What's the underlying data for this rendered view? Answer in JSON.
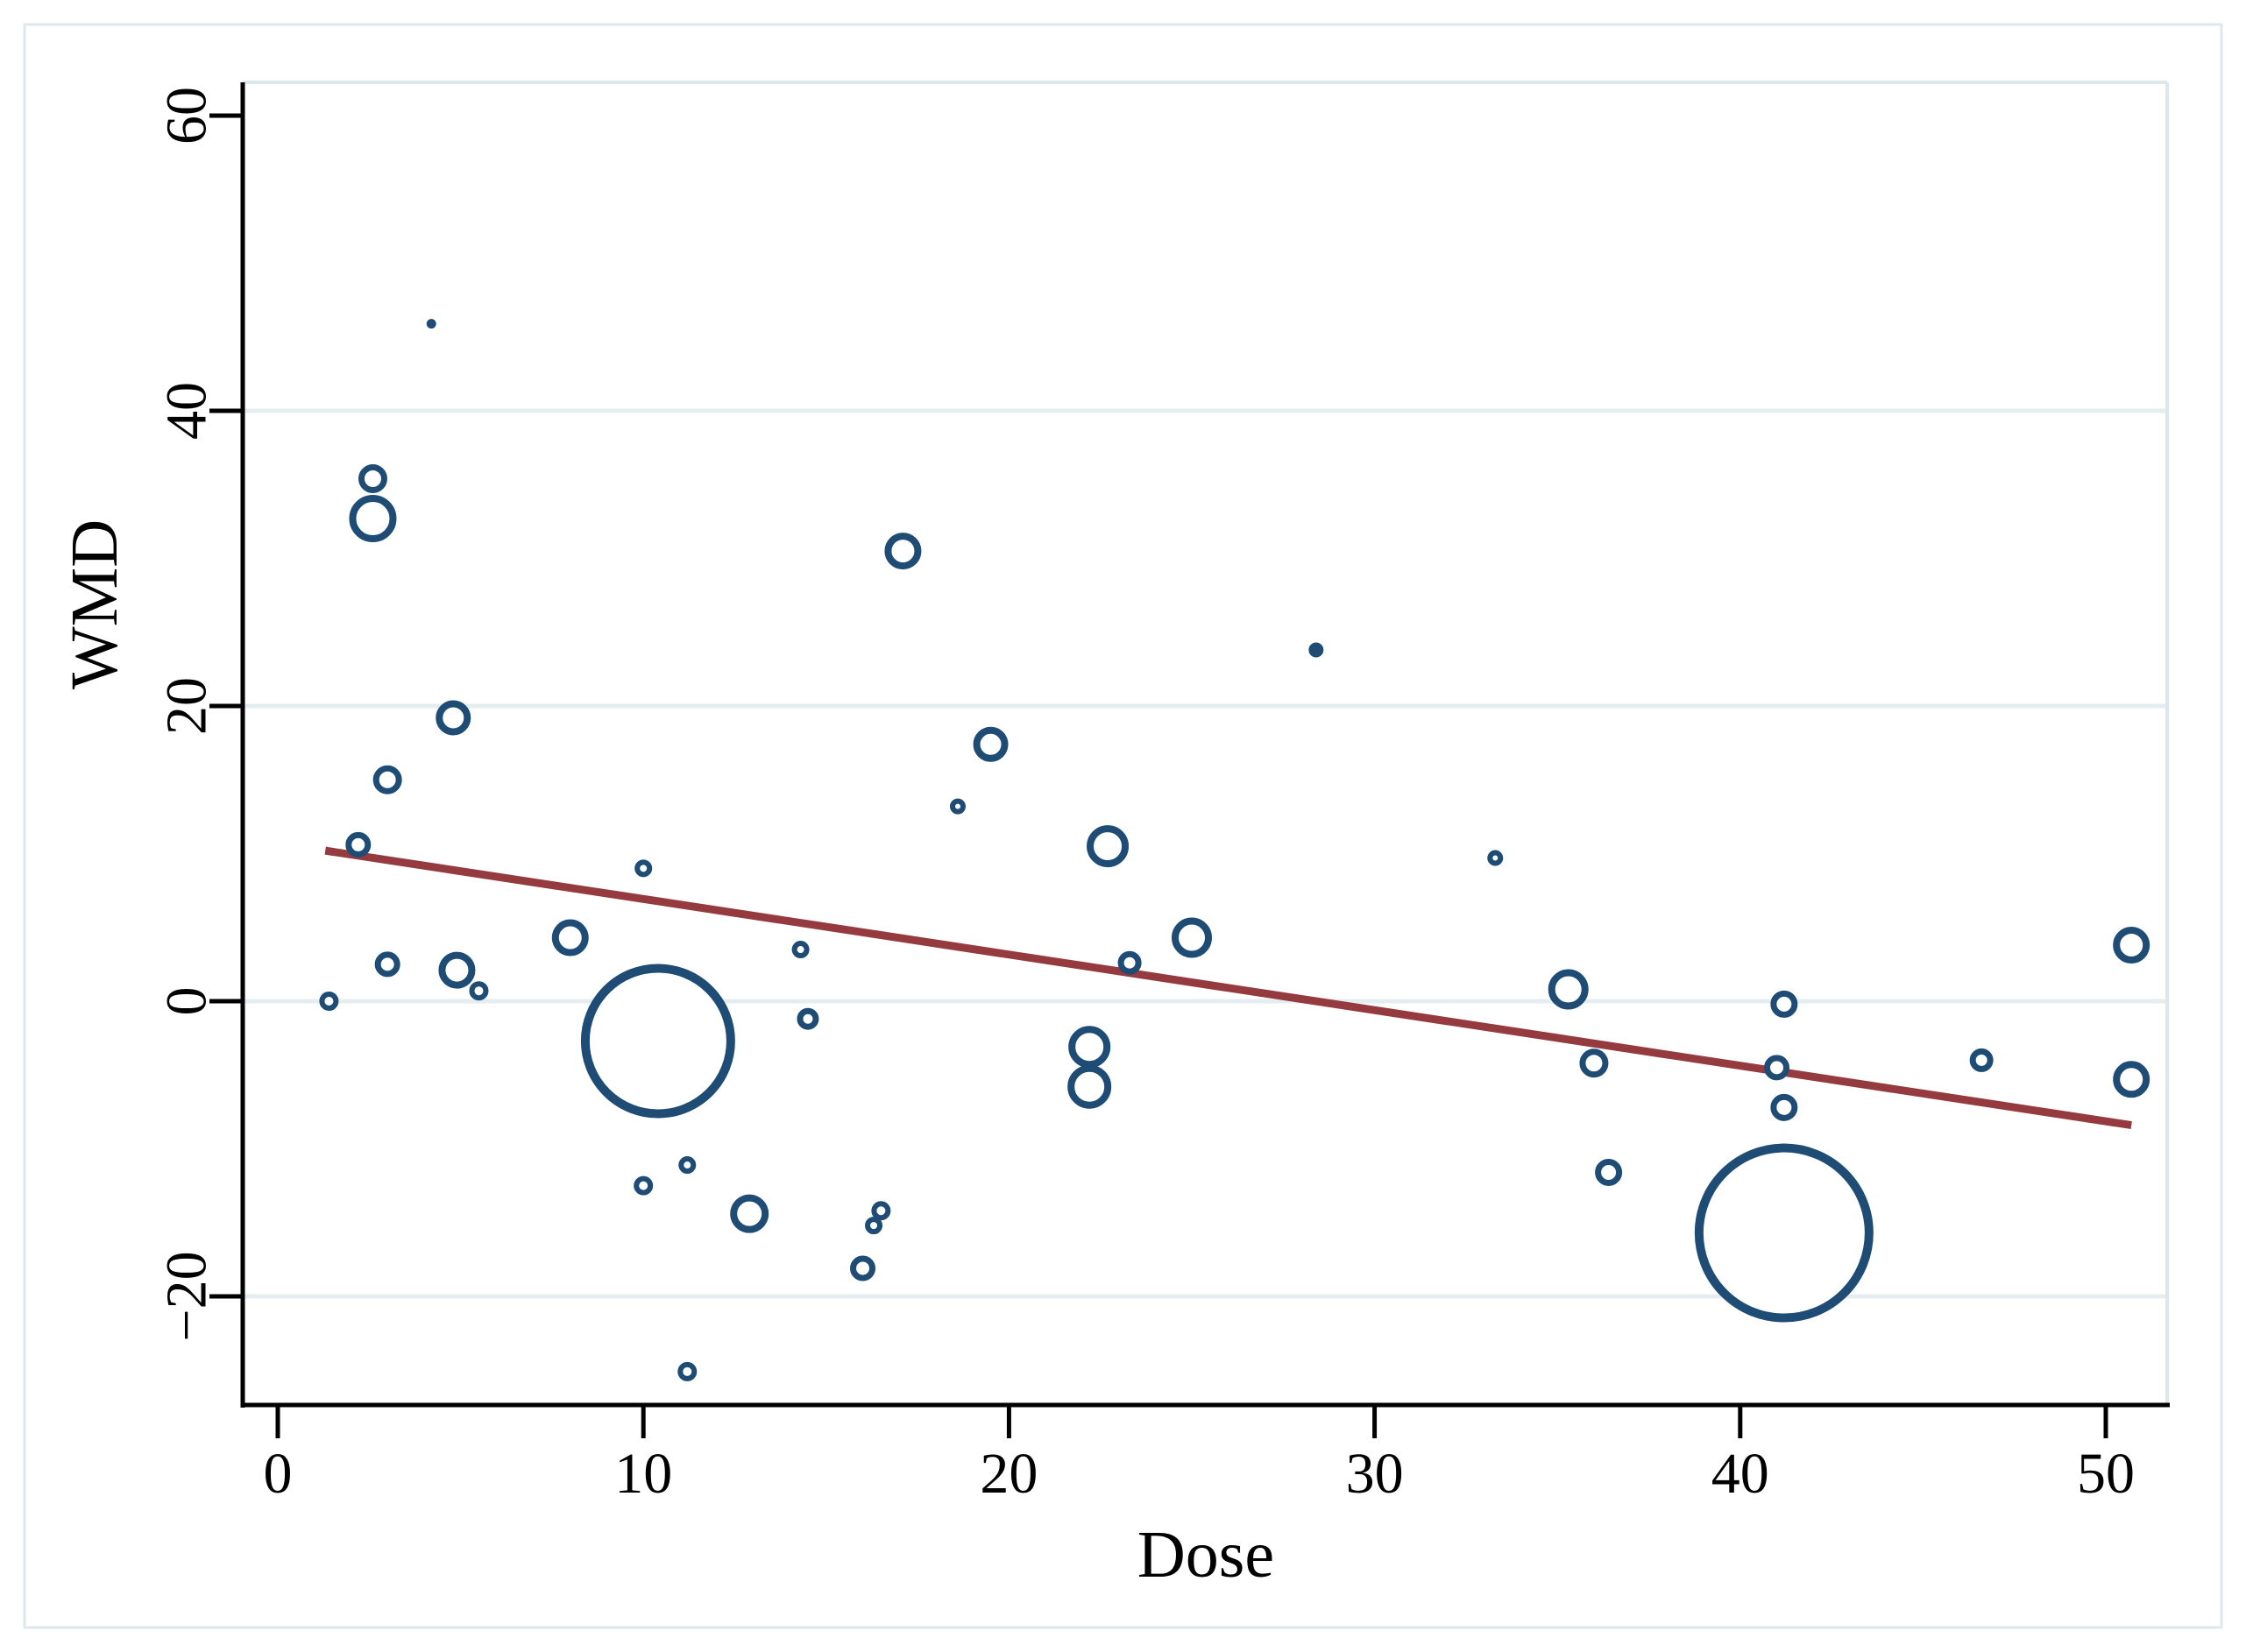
{
  "chart_data": {
    "type": "scatter",
    "subtype": "bubble-meta-regression",
    "title": "",
    "xlabel": "Dose",
    "ylabel": "WMD",
    "xlim": [
      -1,
      51.7
    ],
    "ylim": [
      -27.4,
      62.3
    ],
    "x_ticks": [
      0,
      10,
      20,
      30,
      40,
      50
    ],
    "x_tick_labels": [
      "0",
      "10",
      "20",
      "30",
      "40",
      "50"
    ],
    "y_ticks": [
      60,
      40,
      20,
      0,
      -20
    ],
    "y_tick_labels": [
      "60",
      "40",
      "20",
      "0",
      "−20"
    ],
    "grid_y_values": [
      40,
      20,
      0,
      -20
    ],
    "grid_on": true,
    "legend": "none",
    "points": [
      {
        "dose": 4.2,
        "wmd": 45.9,
        "r": 5,
        "filled": true
      },
      {
        "dose": 2.6,
        "wmd": 35.4,
        "r": 13
      },
      {
        "dose": 2.6,
        "wmd": 32.7,
        "r": 23
      },
      {
        "dose": 4.8,
        "wmd": 19.2,
        "r": 16
      },
      {
        "dose": 3.0,
        "wmd": 15.0,
        "r": 13
      },
      {
        "dose": 2.2,
        "wmd": 10.6,
        "r": 11
      },
      {
        "dose": 10.0,
        "wmd": 9.0,
        "r": 7
      },
      {
        "dose": 8.0,
        "wmd": 4.3,
        "r": 17
      },
      {
        "dose": 3.0,
        "wmd": 2.5,
        "r": 11
      },
      {
        "dose": 4.9,
        "wmd": 2.1,
        "r": 17
      },
      {
        "dose": 5.5,
        "wmd": 0.7,
        "r": 8
      },
      {
        "dose": 1.4,
        "wmd": 0.0,
        "r": 8
      },
      {
        "dose": 10.4,
        "wmd": -2.7,
        "r": 83
      },
      {
        "dose": 14.3,
        "wmd": 3.5,
        "r": 7
      },
      {
        "dose": 14.5,
        "wmd": -1.2,
        "r": 9
      },
      {
        "dose": 11.2,
        "wmd": -11.1,
        "r": 7
      },
      {
        "dose": 10.0,
        "wmd": -12.5,
        "r": 8
      },
      {
        "dose": 12.9,
        "wmd": -14.4,
        "r": 18
      },
      {
        "dose": 16.5,
        "wmd": -14.2,
        "r": 8
      },
      {
        "dose": 16.3,
        "wmd": -15.2,
        "r": 7
      },
      {
        "dose": 16.0,
        "wmd": -18.1,
        "r": 11
      },
      {
        "dose": 17.1,
        "wmd": 30.5,
        "r": 17
      },
      {
        "dose": 19.5,
        "wmd": 17.4,
        "r": 16
      },
      {
        "dose": 18.6,
        "wmd": 13.2,
        "r": 6
      },
      {
        "dose": 22.7,
        "wmd": 10.5,
        "r": 20
      },
      {
        "dose": 25.0,
        "wmd": 4.3,
        "r": 19
      },
      {
        "dose": 23.3,
        "wmd": 2.6,
        "r": 10
      },
      {
        "dose": 22.2,
        "wmd": -3.1,
        "r": 20
      },
      {
        "dose": 22.2,
        "wmd": -5.8,
        "r": 21
      },
      {
        "dose": 28.4,
        "wmd": 23.8,
        "r": 8,
        "filled": true
      },
      {
        "dose": 33.3,
        "wmd": 9.7,
        "r": 6
      },
      {
        "dose": 35.3,
        "wmd": 0.8,
        "r": 19
      },
      {
        "dose": 41.2,
        "wmd": -0.2,
        "r": 12
      },
      {
        "dose": 36.0,
        "wmd": -4.2,
        "r": 13
      },
      {
        "dose": 41.0,
        "wmd": -4.5,
        "r": 11
      },
      {
        "dose": 41.2,
        "wmd": -7.2,
        "r": 12
      },
      {
        "dose": 46.6,
        "wmd": -4.0,
        "r": 10
      },
      {
        "dose": 36.4,
        "wmd": -11.6,
        "r": 12
      },
      {
        "dose": 41.2,
        "wmd": -15.7,
        "r": 97
      },
      {
        "dose": 50.7,
        "wmd": 3.8,
        "r": 17
      },
      {
        "dose": 50.7,
        "wmd": -5.3,
        "r": 17
      },
      {
        "dose": 11.2,
        "wmd": -25.1,
        "r": 8
      }
    ],
    "regression_line": {
      "x1": 1.3,
      "y1": 10.2,
      "x2": 50.7,
      "y2": -8.4
    },
    "colors": {
      "bubble_stroke": "#1e4c74",
      "bubble_fill": "#ffffff",
      "regression_line": "#953a3e",
      "gridline": "#e4eef0",
      "plot_border": "#dce8eb",
      "outer_border": "#dce8eb",
      "axis": "#000000",
      "background": "#ffffff"
    }
  }
}
